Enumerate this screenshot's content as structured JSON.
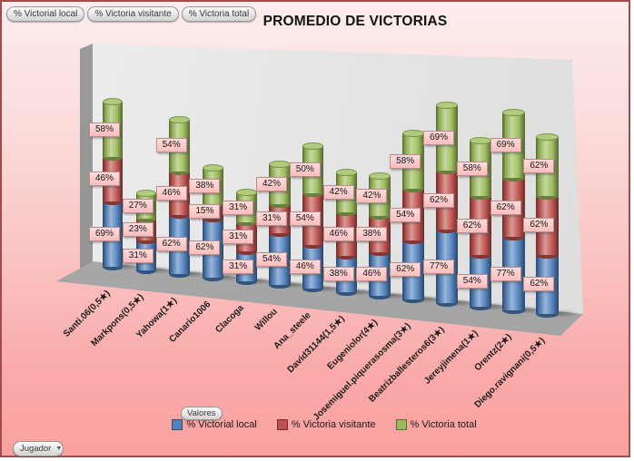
{
  "filter_buttons": [
    "% Victorial local",
    "% Victoria visitante",
    "% Victoria total"
  ],
  "axis_field_button": "Valores",
  "category_field_button": "Jugador",
  "chart_data": {
    "type": "bar",
    "subtype": "3d-stacked-cylinder",
    "title": "PROMEDIO DE VICTORIAS",
    "value_suffix": "%",
    "data_labels": true,
    "legend_position": "bottom",
    "categories": [
      "Santi.06(0,5★)",
      "Markpons(0,5★)",
      "Yahowa(1★)",
      "Canario1006",
      "Clacoga",
      "Willou",
      "Ana_steele",
      "David31144(1,5★)",
      "Eugeniolor(4★)",
      "Josemiguel.piquerasosma(3★)",
      "Beatrizballesteros6(3★)",
      "Jereyjimena(1★)",
      "Orentz(2★)",
      "Diego.ravignani(0,5★)"
    ],
    "series": [
      {
        "name": "% Victorial local",
        "color": "#4F81BD",
        "values": [
          69,
          31,
          62,
          62,
          31,
          54,
          46,
          38,
          46,
          62,
          77,
          54,
          77,
          62
        ]
      },
      {
        "name": "% Victoria visitante",
        "color": "#C0504D",
        "values": [
          46,
          23,
          46,
          15,
          31,
          31,
          54,
          46,
          38,
          54,
          62,
          62,
          62,
          62
        ]
      },
      {
        "name": "% Victoria total",
        "color": "#9BBB59",
        "values": [
          58,
          27,
          54,
          38,
          31,
          42,
          50,
          42,
          42,
          58,
          69,
          58,
          69,
          62
        ]
      }
    ]
  },
  "colors": {
    "background_top": "#FCEDEC",
    "background_bottom": "#F9A1A0",
    "border": "#A34A4A",
    "label_fill": "#FBC7C7",
    "wall": "#E7E7E7",
    "floor": "#A9A9A9"
  }
}
